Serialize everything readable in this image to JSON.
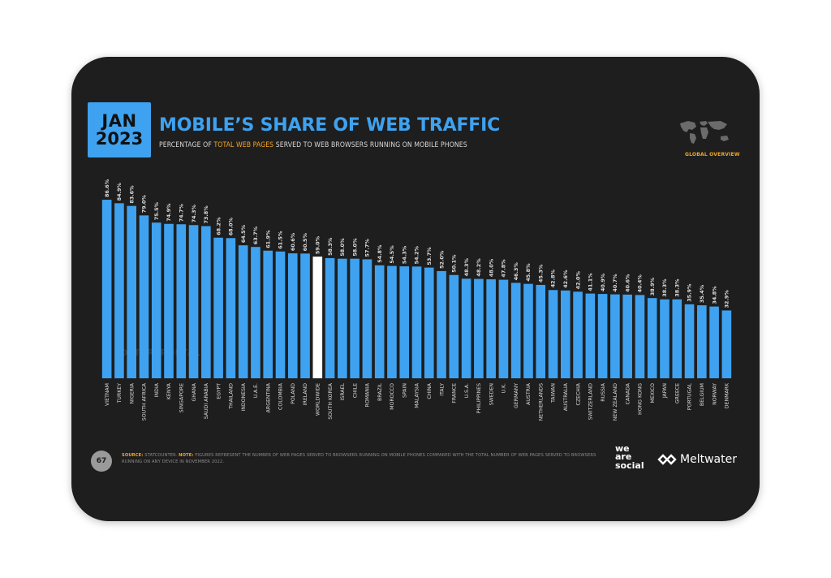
{
  "header": {
    "badge_month": "JAN",
    "badge_year": "2023",
    "title": "MOBILE’S SHARE OF WEB TRAFFIC",
    "subtitle_pre": "PERCENTAGE OF ",
    "subtitle_highlight": "TOTAL WEB PAGES",
    "subtitle_post": " SERVED TO WEB BROWSERS RUNNING ON MOBILE PHONES",
    "section_label": "GLOBAL OVERVIEW"
  },
  "colors": {
    "background": "#1e1e1e",
    "bar": "#3ea2f0",
    "highlight_bar": "#ffffff",
    "accent": "#f5a623",
    "label": "#dcdcdc"
  },
  "watermark": "DATAREPORTAL",
  "footer": {
    "page_number": "67",
    "source_label": "SOURCE:",
    "source_text": " STATCOUNTER. ",
    "note_label": "NOTE:",
    "note_text": " FIGURES REPRESENT THE NUMBER OF WEB PAGES SERVED TO BROWSERS RUNNING ON MOBILE PHONES COMPARED WITH THE TOTAL NUMBER OF WEB PAGES SERVED TO BROWSERS RUNNING ON ANY DEVICE IN NOVEMBER 2022.",
    "brand_1_line1": "we",
    "brand_1_line2": "are",
    "brand_1_line3": "social",
    "brand_2": "Meltwater"
  },
  "chart_data": {
    "type": "bar",
    "ylim": [
      0,
      100
    ],
    "highlight_category": "WORLDWIDE",
    "categories": [
      "VIETNAM",
      "TURKEY",
      "NIGERIA",
      "SOUTH AFRICA",
      "INDIA",
      "KENYA",
      "SINGAPORE",
      "GHANA",
      "SAUDI ARABIA",
      "EGYPT",
      "THAILAND",
      "INDONESIA",
      "U.A.E.",
      "ARGENTINA",
      "COLOMBIA",
      "POLAND",
      "IRELAND",
      "WORLDWIDE",
      "SOUTH KOREA",
      "ISRAEL",
      "CHILE",
      "ROMANIA",
      "BRAZIL",
      "MOROCCO",
      "SPAIN",
      "MALAYSIA",
      "CHINA",
      "ITALY",
      "FRANCE",
      "U.S.A.",
      "PHILIPPINES",
      "SWEDEN",
      "U.K.",
      "GERMANY",
      "AUSTRIA",
      "NETHERLANDS",
      "TAIWAN",
      "AUSTRALIA",
      "CZECHIA",
      "SWITZERLAND",
      "RUSSIA",
      "NEW ZEALAND",
      "CANADA",
      "HONG KONG",
      "MEXICO",
      "JAPAN",
      "GREECE",
      "PORTUGAL",
      "BELGIUM",
      "NORWAY",
      "DENMARK"
    ],
    "values": [
      86.6,
      84.9,
      83.6,
      79.0,
      75.5,
      74.9,
      74.7,
      74.3,
      73.8,
      68.2,
      68.0,
      64.5,
      63.7,
      61.9,
      61.5,
      60.6,
      60.5,
      59.0,
      58.3,
      58.0,
      58.0,
      57.7,
      54.8,
      54.5,
      54.3,
      54.2,
      53.7,
      52.0,
      50.1,
      48.3,
      48.2,
      48.0,
      47.8,
      46.3,
      45.8,
      45.3,
      42.8,
      42.6,
      42.0,
      41.1,
      40.9,
      40.7,
      40.6,
      40.4,
      38.9,
      38.3,
      38.3,
      35.9,
      35.4,
      34.8,
      32.9
    ],
    "labels": [
      "86.6%",
      "84.9%",
      "83.6%",
      "79.0%",
      "75.5%",
      "74.9%",
      "74.7%",
      "74.3%",
      "73.8%",
      "68.2%",
      "68.0%",
      "64.5%",
      "63.7%",
      "61.9%",
      "61.5%",
      "60.6%",
      "60.5%",
      "59.0%",
      "58.3%",
      "58.0%",
      "58.0%",
      "57.7%",
      "54.8%",
      "54.5%",
      "54.3%",
      "54.2%",
      "53.7%",
      "52.0%",
      "50.1%",
      "48.3%",
      "48.2%",
      "48.0%",
      "47.8%",
      "46.3%",
      "45.8%",
      "45.3%",
      "42.8%",
      "42.6%",
      "42.0%",
      "41.1%",
      "40.9%",
      "40.7%",
      "40.6%",
      "40.4%",
      "38.9%",
      "38.3%",
      "38.3%",
      "35.9%",
      "35.4%",
      "34.8%",
      "32.9%"
    ]
  }
}
